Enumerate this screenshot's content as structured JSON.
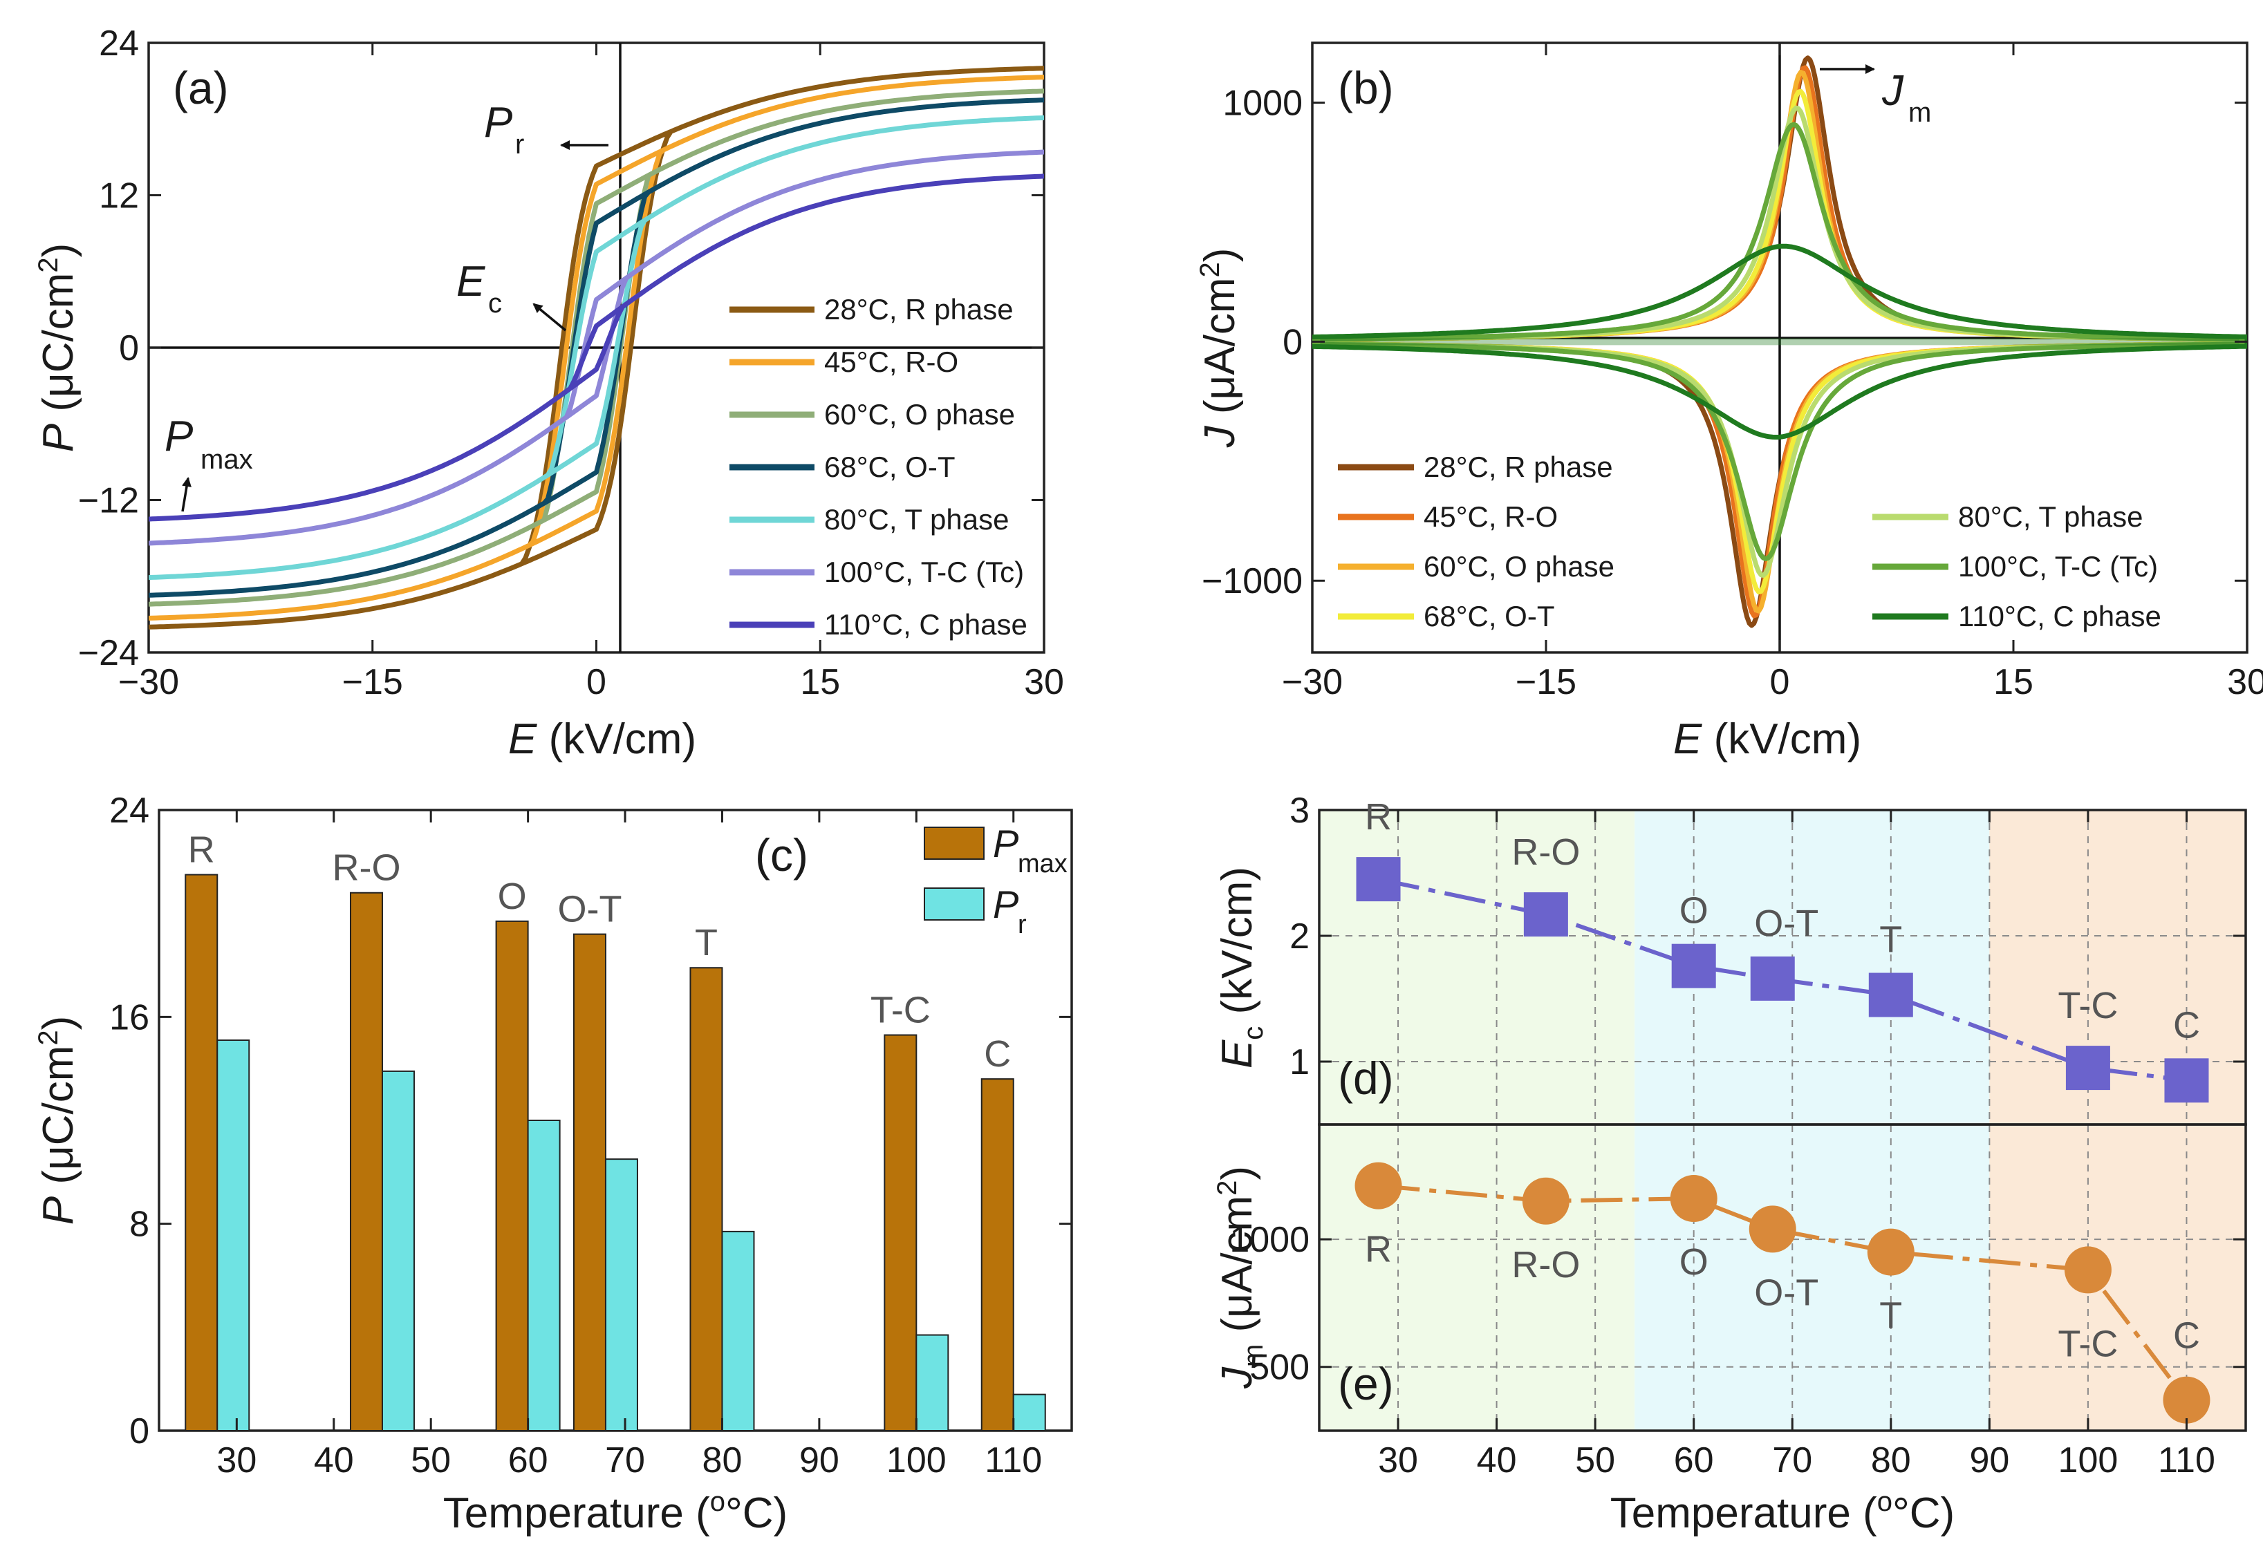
{
  "chart_data": [
    {
      "id": "a",
      "type": "line",
      "panel_label": "(a)",
      "xlabel_var": "E",
      "xlabel_unit": " (kV/cm)",
      "ylabel_var": "P",
      "ylabel_unit": " (μC/cm",
      "ylabel_sup": "2",
      "ylabel_tail": ")",
      "xlim": [
        -30,
        30
      ],
      "ylim": [
        -24,
        24
      ],
      "xticks": [
        "−30",
        "−15",
        "0",
        "15",
        "30"
      ],
      "yticks": [
        "24",
        "12",
        "0",
        "−12",
        "−24"
      ],
      "legend_position": "bottom-right",
      "annotations": {
        "pr": "P",
        "pr_sub": "r",
        "ec": "E",
        "ec_sub": "c",
        "pmax": "P",
        "pmax_sub": "max"
      },
      "series": [
        {
          "name": "28°C, R phase",
          "color": "#8B5A14",
          "Pmax": 22.0,
          "Pr": 15.9,
          "Ec": 2.45
        },
        {
          "name": "45°C, R-O",
          "color": "#F5A52A",
          "Pmax": 21.3,
          "Pr": 14.3,
          "Ec": 2.15
        },
        {
          "name": "60°C, O phase",
          "color": "#8FAE78",
          "Pmax": 20.2,
          "Pr": 12.6,
          "Ec": 1.75
        },
        {
          "name": "68°C, O-T",
          "color": "#0E4A66",
          "Pmax": 19.5,
          "Pr": 10.9,
          "Ec": 1.65
        },
        {
          "name": "80°C, T phase",
          "color": "#6FD6D6",
          "Pmax": 18.1,
          "Pr": 8.4,
          "Ec": 1.55
        },
        {
          "name": "100°C, T-C (Tc)",
          "color": "#8E86D8",
          "Pmax": 15.4,
          "Pr": 4.2,
          "Ec": 0.95
        },
        {
          "name": "110°C, C phase",
          "color": "#4A40B8",
          "Pmax": 13.5,
          "Pr": 1.9,
          "Ec": 0.85
        }
      ]
    },
    {
      "id": "b",
      "type": "line",
      "panel_label": "(b)",
      "xlabel_var": "E",
      "xlabel_unit": " (kV/cm)",
      "ylabel_var": "J",
      "ylabel_unit": " (μA/cm",
      "ylabel_sup": "2",
      "ylabel_tail": ")",
      "xlim": [
        -30,
        30
      ],
      "ylim": [
        -1300,
        1250
      ],
      "xticks": [
        "−30",
        "−15",
        "0",
        "15",
        "30"
      ],
      "yticks": [
        "1000",
        "0",
        "−1000"
      ],
      "legend_position": "bottom",
      "annotations": {
        "jm": "J",
        "jm_sub": "m"
      },
      "series": [
        {
          "name": "28°C, R phase",
          "color": "#8B4A14",
          "Jm": 1160,
          "peak_E": 1.8,
          "width": 1.7
        },
        {
          "name": "45°C, R-O",
          "color": "#E8731E",
          "Jm": 1120,
          "peak_E": 1.6,
          "width": 1.6
        },
        {
          "name": "60°C, O phase",
          "color": "#F5B02E",
          "Jm": 1100,
          "peak_E": 1.4,
          "width": 1.6
        },
        {
          "name": "68°C, O-T",
          "color": "#F2EC3A",
          "Jm": 1020,
          "peak_E": 1.3,
          "width": 1.7
        },
        {
          "name": "80°C, T phase",
          "color": "#B9DB6E",
          "Jm": 950,
          "peak_E": 1.1,
          "width": 1.9
        },
        {
          "name": "100°C, T-C (Tc)",
          "color": "#66A83A",
          "Jm": 880,
          "peak_E": 0.9,
          "width": 2.3
        },
        {
          "name": "110°C, C phase",
          "color": "#1F7A1F",
          "Jm": 370,
          "peak_E": 0.3,
          "width": 6.0
        }
      ]
    },
    {
      "id": "c",
      "type": "bar",
      "panel_label": "(c)",
      "xlabel": "Temperature (",
      "xlabel_deg": "°C)",
      "ylabel_var": "P",
      "ylabel_unit": " (μC/cm",
      "ylabel_sup": "2",
      "ylabel_tail": ")",
      "xlim": [
        22,
        116
      ],
      "ylim": [
        0,
        24
      ],
      "xticks": [
        "30",
        "40",
        "50",
        "60",
        "70",
        "80",
        "90",
        "100",
        "110"
      ],
      "yticks": [
        "24",
        "16",
        "8",
        "0"
      ],
      "legend_position": "top-right",
      "legend": [
        {
          "name": "P",
          "sub": "max",
          "color": "#B8730A"
        },
        {
          "name": "P",
          "sub": "r",
          "color": "#6FE3E3"
        }
      ],
      "temperatures": [
        28,
        45,
        60,
        68,
        80,
        100,
        110
      ],
      "phase_labels": [
        "R",
        "R-O",
        "O",
        "O-T",
        "T",
        "T-C",
        "C"
      ],
      "series": [
        {
          "name": "Pmax",
          "values": [
            21.5,
            20.8,
            19.7,
            19.2,
            17.9,
            15.3,
            13.6
          ]
        },
        {
          "name": "Pr",
          "values": [
            15.1,
            13.9,
            12.0,
            10.5,
            7.7,
            3.7,
            1.4
          ]
        }
      ]
    },
    {
      "id": "d",
      "type": "line",
      "panel_label": "(d)",
      "ylabel_var": "E",
      "ylabel_sub": "c",
      "ylabel_unit": " (kV/cm)",
      "xlim": [
        22,
        116
      ],
      "ylim": [
        0.5,
        3
      ],
      "yticks": [
        "3",
        "2",
        "1"
      ],
      "marker": "square",
      "color": "#6B63CC",
      "x": [
        28,
        45,
        60,
        68,
        80,
        100,
        110
      ],
      "y": [
        2.45,
        2.17,
        1.76,
        1.66,
        1.53,
        0.95,
        0.85
      ],
      "point_labels": [
        "R",
        "R-O",
        "O",
        "O-T",
        "T",
        "T-C",
        "C"
      ],
      "regions": [
        {
          "from": 22,
          "to": 54,
          "color": "#F0FAE8"
        },
        {
          "from": 54,
          "to": 90,
          "color": "#E6F9FB"
        },
        {
          "from": 90,
          "to": 116,
          "color": "#FBE9D7"
        }
      ]
    },
    {
      "id": "e",
      "type": "line",
      "panel_label": "(e)",
      "xlabel": "Temperature (",
      "xlabel_deg": "°C)",
      "ylabel_var": "J",
      "ylabel_sub": "m",
      "ylabel_unit": " (μA/cm",
      "ylabel_sup": "2",
      "ylabel_tail": ")",
      "xlim": [
        22,
        116
      ],
      "ylim": [
        250,
        1450
      ],
      "xticks": [
        "30",
        "40",
        "50",
        "60",
        "70",
        "80",
        "90",
        "100",
        "110"
      ],
      "yticks": [
        "1000",
        "500"
      ],
      "marker": "circle",
      "color": "#D9893A",
      "x": [
        28,
        45,
        60,
        68,
        80,
        100,
        110
      ],
      "y": [
        1210,
        1150,
        1160,
        1040,
        950,
        880,
        370
      ],
      "point_labels": [
        "R",
        "R-O",
        "O",
        "O-T",
        "T",
        "T-C",
        "C"
      ],
      "regions": [
        {
          "from": 22,
          "to": 54,
          "color": "#F0FAE8"
        },
        {
          "from": 54,
          "to": 90,
          "color": "#E6F9FB"
        },
        {
          "from": 90,
          "to": 116,
          "color": "#FBE9D7"
        }
      ]
    }
  ]
}
